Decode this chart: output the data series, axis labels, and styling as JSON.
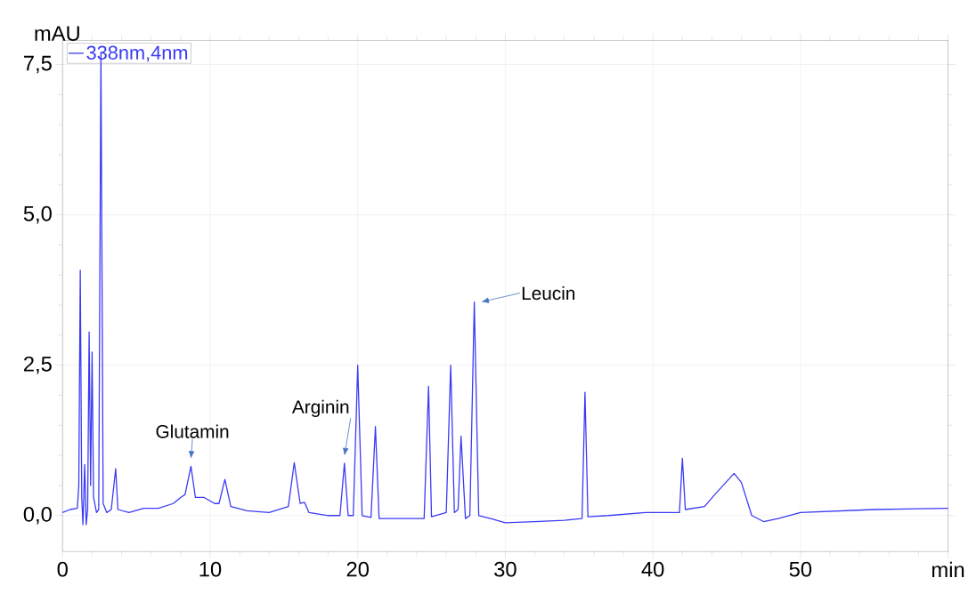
{
  "chart_data": {
    "type": "line",
    "ylabel": "mAU",
    "x": [
      0,
      0.5,
      1.0,
      1.1,
      1.2,
      1.3,
      1.38,
      1.5,
      1.6,
      1.7,
      1.8,
      1.9,
      2.0,
      2.1,
      2.3,
      2.45,
      2.6,
      2.75,
      3.0,
      3.3,
      3.6,
      3.75,
      4.5,
      5.5,
      6.5,
      7.5,
      8.0,
      8.3,
      8.7,
      9.0,
      9.6,
      10.3,
      10.6,
      11.0,
      11.4,
      12.5,
      14.0,
      15.3,
      15.7,
      16.1,
      16.4,
      16.7,
      18.0,
      18.8,
      19.1,
      19.35,
      19.7,
      20.0,
      20.3,
      20.9,
      21.2,
      21.45,
      23.0,
      24.5,
      24.8,
      25.0,
      26.0,
      26.3,
      26.55,
      26.8,
      27.0,
      27.3,
      27.6,
      27.9,
      28.2,
      29.0,
      30.0,
      32.0,
      34.0,
      35.2,
      35.4,
      35.6,
      37.0,
      39.5,
      41.8,
      42.0,
      42.2,
      43.5,
      44.2,
      45.5,
      46.0,
      46.7,
      47.5,
      48.5,
      50,
      55,
      60
    ],
    "series": [
      {
        "name": "338nm,4nm",
        "color": "#3a3af5",
        "values": [
          0.05,
          0.1,
          0.12,
          0.5,
          4.08,
          0.3,
          -0.15,
          0.85,
          -0.15,
          0.1,
          3.05,
          0.5,
          2.72,
          0.3,
          0.05,
          0.1,
          7.7,
          0.2,
          0.05,
          0.1,
          0.78,
          0.1,
          0.05,
          0.12,
          0.12,
          0.2,
          0.3,
          0.35,
          0.82,
          0.3,
          0.3,
          0.2,
          0.2,
          0.6,
          0.15,
          0.08,
          0.05,
          0.15,
          0.88,
          0.2,
          0.22,
          0.05,
          0.0,
          0.0,
          0.87,
          0.0,
          0.0,
          2.5,
          0.0,
          -0.03,
          1.48,
          -0.05,
          -0.05,
          -0.05,
          2.15,
          -0.02,
          0.05,
          2.5,
          0.05,
          0.1,
          1.32,
          -0.05,
          0.0,
          3.55,
          0.0,
          -0.05,
          -0.12,
          -0.1,
          -0.08,
          -0.05,
          2.05,
          -0.02,
          0.0,
          0.05,
          0.05,
          0.95,
          0.1,
          0.15,
          0.35,
          0.7,
          0.55,
          0.0,
          -0.1,
          -0.05,
          0.05,
          0.1,
          0.12
        ]
      }
    ],
    "xlim": [
      0,
      60
    ],
    "ylim": [
      -0.6,
      7.9
    ],
    "xticks": [
      0,
      10,
      20,
      30,
      40,
      50,
      {
        "value": 60,
        "label": "min"
      }
    ],
    "yticks": [
      {
        "value": 0,
        "label": "0,0"
      },
      {
        "value": 2.5,
        "label": "2,5"
      },
      {
        "value": 5,
        "label": "5,0"
      },
      {
        "value": 7.5,
        "label": "7,5"
      }
    ],
    "annotations": [
      {
        "text": "Glutamin",
        "x": 8.7,
        "y": 0.82
      },
      {
        "text": "Arginin",
        "x": 19.1,
        "y": 0.87
      },
      {
        "text": "Leucin",
        "x": 27.9,
        "y": 3.55
      }
    ],
    "grid": true,
    "legend": "top left",
    "marker": "none",
    "line_style": "solid"
  }
}
